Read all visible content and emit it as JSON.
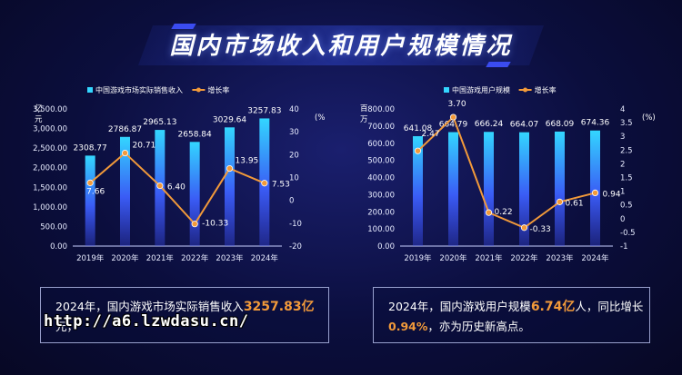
{
  "title": "国内市场收入和用户规模情况",
  "colors": {
    "bar": "#3a4cf0",
    "bar_top": "#33d6ff",
    "line": "#f29a3a",
    "accent": "#f29a3a"
  },
  "chart_data": [
    {
      "type": "bar+line",
      "legend": [
        "中国游戏市场实际销售收入",
        "增长率"
      ],
      "categories": [
        "2019年",
        "2020年",
        "2021年",
        "2022年",
        "2023年",
        "2024年"
      ],
      "series": [
        {
          "name": "中国游戏市场实际销售收入",
          "kind": "bar",
          "axis": "left",
          "values": [
            2308.77,
            2786.87,
            2965.13,
            2658.84,
            3029.64,
            3257.83
          ],
          "labels": [
            "2308.77",
            "2786.87",
            "2965.13",
            "2658.84",
            "3029.64",
            "3257.83"
          ]
        },
        {
          "name": "增长率",
          "kind": "line",
          "axis": "right",
          "values": [
            7.66,
            20.71,
            6.4,
            -10.33,
            13.95,
            7.53
          ],
          "labels": [
            "7.66",
            "20.71",
            "6.40",
            "-10.33",
            "13.95",
            "7.53"
          ]
        }
      ],
      "left_unit": "亿元",
      "right_unit": "%",
      "left_ticks": [
        "0.00",
        "500.00",
        "1,000.00",
        "1,500.00",
        "2,000.00",
        "2,500.00",
        "3,000.00",
        "3,500.00"
      ],
      "right_ticks": [
        "-20",
        "-10",
        "0",
        "10",
        "20",
        "30",
        "40"
      ],
      "ylim_left": [
        0,
        3500
      ],
      "ylim_right": [
        -20,
        40
      ]
    },
    {
      "type": "bar+line",
      "legend": [
        "中国游戏用户规模",
        "增长率"
      ],
      "categories": [
        "2019年",
        "2020年",
        "2021年",
        "2022年",
        "2023年",
        "2024年"
      ],
      "series": [
        {
          "name": "中国游戏用户规模",
          "kind": "bar",
          "axis": "left",
          "values": [
            641.08,
            664.79,
            666.24,
            664.07,
            668.09,
            674.36
          ],
          "labels": [
            "641.08",
            "664.79",
            "666.24",
            "664.07",
            "668.09",
            "674.36"
          ]
        },
        {
          "name": "增长率",
          "kind": "line",
          "axis": "right",
          "values": [
            2.47,
            3.7,
            0.22,
            -0.33,
            0.61,
            0.94
          ],
          "labels": [
            "2.47",
            "3.70",
            "0.22",
            "-0.33",
            "0.61",
            "0.94"
          ]
        }
      ],
      "left_unit": "百万",
      "right_unit": "%",
      "left_ticks": [
        "0.00",
        "100.00",
        "200.00",
        "300.00",
        "400.00",
        "500.00",
        "600.00",
        "700.00",
        "800.00"
      ],
      "right_ticks": [
        "-1",
        "-0.5",
        "0",
        "0.5",
        "1",
        "1.5",
        "2",
        "2.5",
        "3",
        "3.5",
        "4"
      ],
      "ylim_left": [
        0,
        800
      ],
      "ylim_right": [
        -1,
        4
      ]
    }
  ],
  "notes": {
    "left": {
      "pre": "2024年，国内游戏市场实际销售收入",
      "value": "3257.83亿",
      "post": "元，"
    },
    "right": {
      "pre": "2024年，国内游戏用户规模",
      "value": "6.74亿",
      "mid": "人，同比增长",
      "value2": "0.94%",
      "post": "，亦为历史新高点。"
    }
  },
  "watermark": "http://a6.lzwdasu.cn/"
}
